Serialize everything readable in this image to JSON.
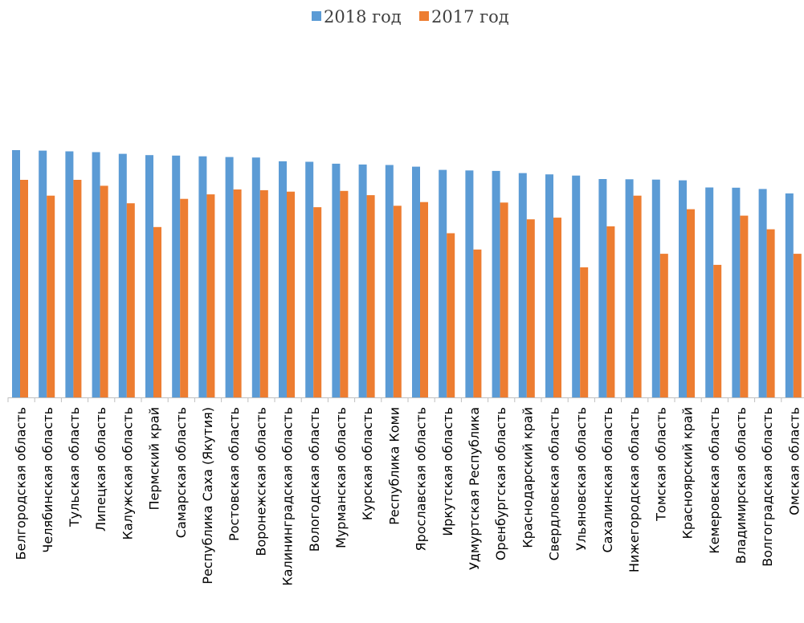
{
  "chart_data": {
    "type": "bar",
    "title": "",
    "xlabel": "",
    "ylabel": "",
    "categories": [
      "Белгородская область",
      "Челябинская область",
      "Тульская область",
      "Липецкая область",
      "Калужская область",
      "Пермский край",
      "Самарская область",
      "Республика Саха (Якутия)",
      "Ростовская область",
      "Воронежская область",
      "Калининградская область",
      "Вологодская область",
      "Мурманская область",
      "Курская область",
      "Республика Коми",
      "Ярославская область",
      "Иркутская область",
      "Удмуртская Республика",
      "Оренбургская область",
      "Краснодарский край",
      "Свердловская область",
      "Ульяновская область",
      "Сахалинская область",
      "Нижегородская область",
      "Томская область",
      "Красноярский край",
      "Кемеровская область",
      "Владимирская область",
      "Волгоградская область",
      "Омская область"
    ],
    "series": [
      {
        "name": "2018 год",
        "color": "#5B9BD5",
        "values": [
          100,
          99.8,
          99.5,
          99.2,
          98.5,
          98.0,
          97.8,
          97.5,
          97.2,
          97.0,
          95.5,
          95.3,
          94.5,
          94.2,
          94.0,
          93.3,
          92.0,
          91.8,
          91.6,
          90.7,
          90.2,
          89.7,
          88.3,
          88.2,
          88.1,
          87.8,
          84.9,
          84.8,
          84.3,
          82.5
        ]
      },
      {
        "name": "2017 год",
        "color": "#ED7D31",
        "values": [
          88.0,
          81.6,
          88.0,
          85.6,
          78.5,
          68.9,
          80.3,
          82.1,
          84.1,
          83.8,
          83.2,
          76.9,
          83.5,
          81.8,
          77.5,
          79.0,
          66.4,
          59.8,
          78.8,
          72.0,
          72.7,
          52.6,
          69.2,
          81.6,
          58.1,
          76.1,
          53.6,
          73.5,
          68.0,
          58.1
        ]
      }
    ],
    "ylim": [
      0,
      100
    ],
    "grid": false,
    "legend_position": "top"
  }
}
